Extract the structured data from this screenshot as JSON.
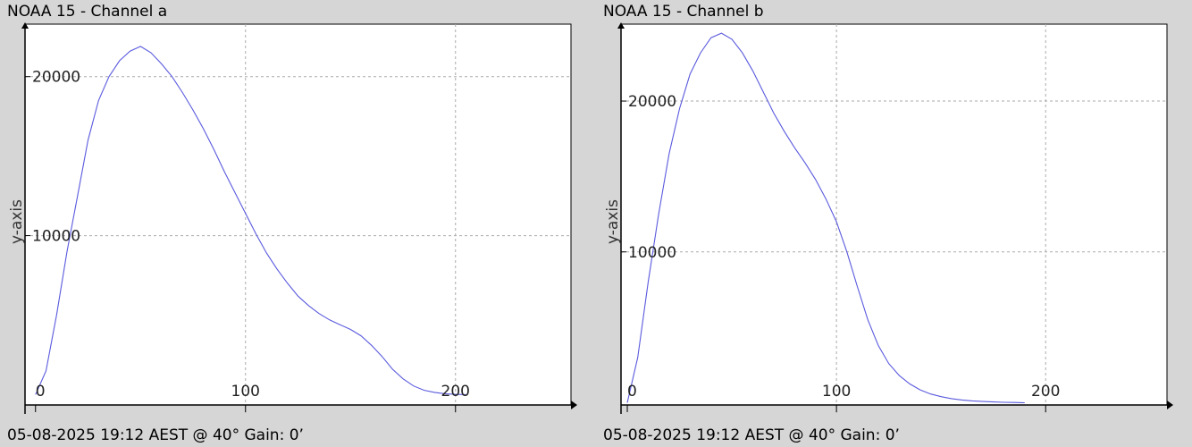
{
  "accent_color": "#5a5ade",
  "chart_data": [
    {
      "type": "line",
      "title": "NOAA 15 - Channel a",
      "ylabel": "y-axis",
      "xlabel": "",
      "footer": "05-08-2025 19:12 AEST @ 40° Gain: 0’",
      "xlim": [
        -5,
        255
      ],
      "ylim": [
        -650,
        23300
      ],
      "x_ticks": [
        0,
        100,
        200
      ],
      "y_ticks": [
        10000,
        20000
      ],
      "grid": true,
      "series": [
        {
          "color": "#5a5ade",
          "x": [
            0,
            5,
            10,
            15,
            20,
            25,
            30,
            35,
            40,
            45,
            50,
            55,
            60,
            65,
            70,
            75,
            80,
            85,
            90,
            95,
            100,
            105,
            110,
            115,
            120,
            125,
            130,
            135,
            140,
            145,
            150,
            155,
            160,
            165,
            170,
            175,
            180,
            185,
            190,
            195,
            200,
            205
          ],
          "y": [
            0,
            1500,
            5000,
            9000,
            12500,
            16000,
            18500,
            20000,
            21000,
            21600,
            21900,
            21500,
            20800,
            20000,
            19000,
            17900,
            16700,
            15400,
            14000,
            12700,
            11400,
            10100,
            8900,
            7900,
            7000,
            6200,
            5600,
            5100,
            4700,
            4400,
            4100,
            3700,
            3100,
            2400,
            1600,
            1000,
            550,
            280,
            140,
            60,
            20,
            0
          ]
        }
      ]
    },
    {
      "type": "line",
      "title": "NOAA 15 - Channel b",
      "ylabel": "y-axis",
      "xlabel": "",
      "footer": "05-08-2025 19:12 AEST @ 40° Gain: 0’",
      "xlim": [
        -3,
        258
      ],
      "ylim": [
        -150,
        25100
      ],
      "x_ticks": [
        0,
        100,
        200
      ],
      "y_ticks": [
        10000,
        20000
      ],
      "grid": true,
      "series": [
        {
          "color": "#5a5ade",
          "x": [
            0,
            5,
            10,
            15,
            20,
            25,
            30,
            35,
            40,
            45,
            50,
            55,
            60,
            65,
            70,
            75,
            80,
            85,
            90,
            95,
            100,
            105,
            110,
            115,
            120,
            125,
            130,
            135,
            140,
            145,
            150,
            155,
            160,
            165,
            170,
            175,
            180,
            185,
            190
          ],
          "y": [
            0,
            3000,
            8000,
            12500,
            16500,
            19500,
            21800,
            23200,
            24200,
            24500,
            24100,
            23200,
            22000,
            20600,
            19200,
            18000,
            16900,
            15900,
            14800,
            13500,
            12000,
            10000,
            7700,
            5500,
            3800,
            2600,
            1800,
            1250,
            850,
            580,
            400,
            270,
            180,
            120,
            80,
            50,
            30,
            15,
            0
          ]
        }
      ]
    }
  ]
}
